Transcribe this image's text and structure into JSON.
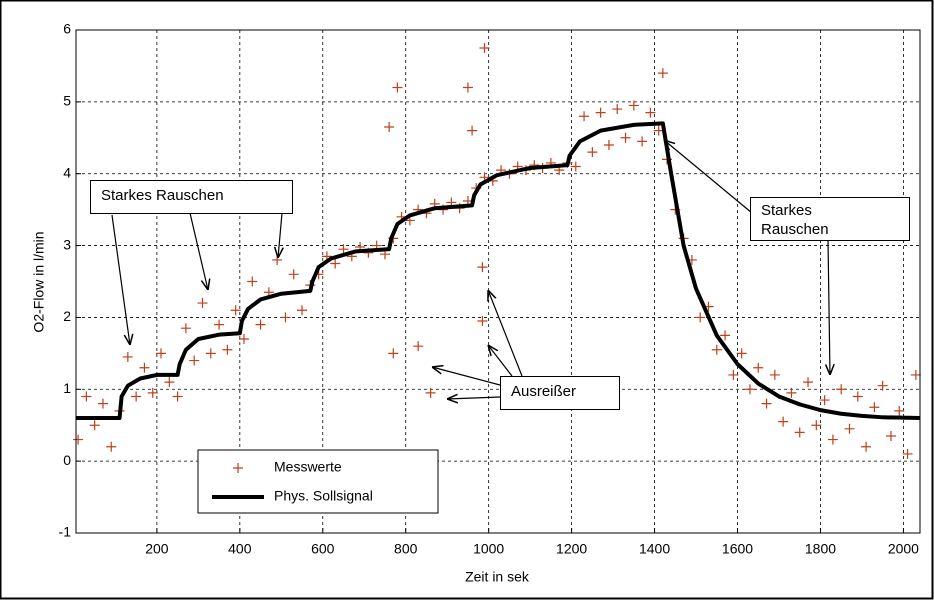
{
  "chart_data": {
    "type": "line",
    "x_label": "Zeit in sek",
    "y_label": "O2-Flow in l/min",
    "xlim": [
      5,
      2040
    ],
    "ylim": [
      -1,
      6
    ],
    "xticks": [
      200,
      400,
      600,
      800,
      1000,
      1200,
      1400,
      1600,
      1800,
      2000
    ],
    "yticks": [
      -1,
      0,
      1,
      2,
      3,
      4,
      5,
      6
    ],
    "grid": true,
    "legend": "lower left",
    "annotations": [
      "Starkes Rauschen",
      "Starkes Rauschen",
      "Ausreißer"
    ],
    "series": [
      {
        "name": "Messwerte",
        "type": "scatter",
        "color": "#c0401c",
        "x": [
          10,
          30,
          50,
          70,
          90,
          110,
          130,
          150,
          170,
          190,
          210,
          230,
          250,
          270,
          290,
          310,
          330,
          350,
          370,
          390,
          410,
          430,
          450,
          470,
          490,
          510,
          530,
          550,
          570,
          590,
          610,
          630,
          650,
          670,
          690,
          710,
          730,
          750,
          770,
          790,
          810,
          830,
          850,
          870,
          890,
          910,
          930,
          950,
          970,
          990,
          1010,
          1030,
          1050,
          1070,
          1090,
          1110,
          1130,
          1150,
          1170,
          1190,
          1210,
          1230,
          1250,
          1270,
          1290,
          1310,
          1330,
          1350,
          1370,
          1390,
          1410,
          1430,
          1450,
          1470,
          1490,
          1510,
          1530,
          1550,
          1570,
          1590,
          1610,
          1630,
          1650,
          1670,
          1690,
          1710,
          1730,
          1750,
          1770,
          1790,
          1810,
          1830,
          1850,
          1870,
          1890,
          1910,
          1930,
          1950,
          1970,
          1990,
          2010,
          2030,
          760,
          780,
          770,
          830,
          860,
          990,
          985,
          985,
          950,
          960,
          1420
        ],
        "values": [
          0.3,
          0.9,
          0.5,
          0.8,
          0.2,
          0.7,
          1.45,
          0.9,
          1.3,
          0.95,
          1.5,
          1.1,
          0.9,
          1.85,
          1.4,
          2.2,
          1.5,
          1.9,
          1.55,
          2.1,
          1.7,
          2.5,
          1.9,
          2.35,
          2.8,
          2.0,
          2.6,
          2.1,
          2.45,
          2.6,
          2.85,
          2.75,
          2.95,
          2.85,
          2.98,
          2.9,
          3.0,
          2.88,
          3.1,
          3.4,
          3.35,
          3.5,
          3.45,
          3.58,
          3.5,
          3.6,
          3.52,
          3.62,
          3.8,
          3.95,
          3.9,
          4.05,
          4.0,
          4.1,
          4.05,
          4.12,
          4.08,
          4.15,
          4.05,
          4.15,
          4.1,
          4.8,
          4.3,
          4.85,
          4.4,
          4.9,
          4.5,
          4.95,
          4.45,
          4.85,
          4.6,
          4.2,
          3.5,
          3.1,
          2.8,
          2.0,
          2.15,
          1.55,
          1.75,
          1.2,
          1.5,
          1.0,
          1.3,
          0.8,
          1.2,
          0.55,
          0.95,
          0.4,
          1.1,
          0.5,
          0.85,
          0.3,
          1.0,
          0.45,
          0.9,
          0.2,
          0.75,
          1.05,
          0.35,
          0.7,
          0.1,
          1.2,
          4.65,
          5.2,
          1.5,
          1.6,
          0.95,
          5.75,
          2.7,
          1.95,
          5.2,
          4.6,
          5.4
        ]
      },
      {
        "name": "Phys. Sollsignal",
        "type": "line",
        "color": "#000000",
        "x": [
          5,
          110,
          115,
          130,
          160,
          200,
          250,
          255,
          270,
          300,
          350,
          400,
          405,
          420,
          450,
          500,
          570,
          575,
          590,
          620,
          680,
          760,
          765,
          780,
          810,
          870,
          960,
          965,
          980,
          1020,
          1100,
          1190,
          1195,
          1220,
          1270,
          1350,
          1420,
          1440,
          1470,
          1500,
          1550,
          1600,
          1650,
          1700,
          1750,
          1800,
          1850,
          1900,
          1950,
          2040
        ],
        "values": [
          0.6,
          0.6,
          0.9,
          1.05,
          1.15,
          1.2,
          1.2,
          1.35,
          1.55,
          1.7,
          1.76,
          1.78,
          1.95,
          2.12,
          2.25,
          2.33,
          2.37,
          2.5,
          2.7,
          2.82,
          2.92,
          2.95,
          3.1,
          3.3,
          3.42,
          3.52,
          3.56,
          3.7,
          3.85,
          3.98,
          4.08,
          4.12,
          4.25,
          4.45,
          4.6,
          4.68,
          4.7,
          4.0,
          3.0,
          2.4,
          1.75,
          1.35,
          1.08,
          0.9,
          0.79,
          0.71,
          0.66,
          0.63,
          0.61,
          0.6
        ]
      }
    ]
  }
}
